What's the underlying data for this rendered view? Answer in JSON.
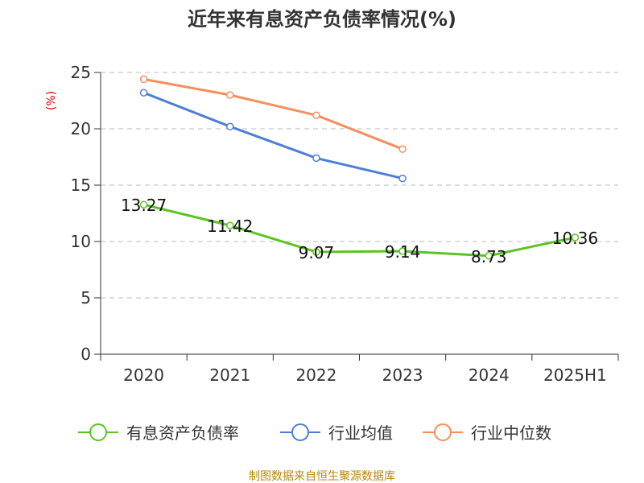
{
  "chart_data": {
    "type": "line",
    "title": "近年来有息资产负债率情况(%)",
    "ylabel": "(%)",
    "xlabel": "",
    "categories": [
      "2020",
      "2021",
      "2022",
      "2023",
      "2024",
      "2025H1"
    ],
    "ylim": [
      0,
      25
    ],
    "yticks": [
      0,
      5,
      10,
      15,
      20,
      25
    ],
    "grid": true,
    "legend_position": "bottom",
    "series": [
      {
        "name": "有息资产负债率",
        "color": "#5bc424",
        "values": [
          13.27,
          11.42,
          9.07,
          9.14,
          8.73,
          10.36
        ],
        "labels": [
          "13.27",
          "11.42",
          "9.07",
          "9.14",
          "8.73",
          "10.36"
        ]
      },
      {
        "name": "行业均值",
        "color": "#4e7fd6",
        "values": [
          23.2,
          20.2,
          17.4,
          15.6,
          null,
          null
        ]
      },
      {
        "name": "行业中位数",
        "color": "#f58f5e",
        "values": [
          24.4,
          23.0,
          21.2,
          18.2,
          null,
          null
        ]
      }
    ]
  },
  "footer": {
    "source": "制图数据来自恒生聚源数据库"
  }
}
